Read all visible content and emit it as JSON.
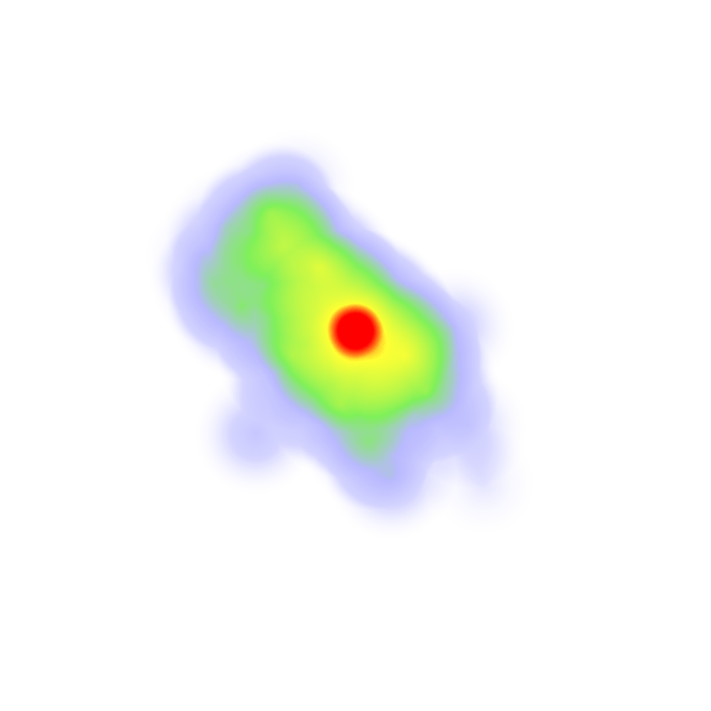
{
  "chart_data": {
    "type": "heatmap",
    "title": "",
    "xlabel": "",
    "ylabel": "",
    "xlim": [
      0,
      1
    ],
    "ylim": [
      0,
      1
    ],
    "grid": false,
    "legend": "none",
    "colors": {
      "background": "#ffffff",
      "low": "#b9b9ff",
      "mid": "#7ff05a",
      "high": "#ffff33",
      "peak": "#ff0000"
    },
    "points": [
      {
        "x": 0.5,
        "y": 0.535,
        "weight": 1.0
      },
      {
        "x": 0.45,
        "y": 0.625,
        "weight": 0.55
      },
      {
        "x": 0.4,
        "y": 0.655,
        "weight": 0.45
      },
      {
        "x": 0.38,
        "y": 0.7,
        "weight": 0.4
      },
      {
        "x": 0.34,
        "y": 0.57,
        "weight": 0.45
      },
      {
        "x": 0.41,
        "y": 0.5,
        "weight": 0.45
      },
      {
        "x": 0.57,
        "y": 0.5,
        "weight": 0.5
      },
      {
        "x": 0.6,
        "y": 0.45,
        "weight": 0.42
      },
      {
        "x": 0.48,
        "y": 0.43,
        "weight": 0.42
      },
      {
        "x": 0.52,
        "y": 0.38,
        "weight": 0.35
      },
      {
        "x": 0.55,
        "y": 0.33,
        "weight": 0.28
      },
      {
        "x": 0.36,
        "y": 0.39,
        "weight": 0.25
      },
      {
        "x": 0.3,
        "y": 0.6,
        "weight": 0.25
      },
      {
        "x": 0.32,
        "y": 0.68,
        "weight": 0.22
      },
      {
        "x": 0.64,
        "y": 0.54,
        "weight": 0.22
      },
      {
        "x": 0.66,
        "y": 0.4,
        "weight": 0.2
      },
      {
        "x": 0.68,
        "y": 0.32,
        "weight": 0.12
      },
      {
        "x": 0.42,
        "y": 0.74,
        "weight": 0.18
      },
      {
        "x": 0.28,
        "y": 0.64,
        "weight": 0.15
      }
    ]
  }
}
